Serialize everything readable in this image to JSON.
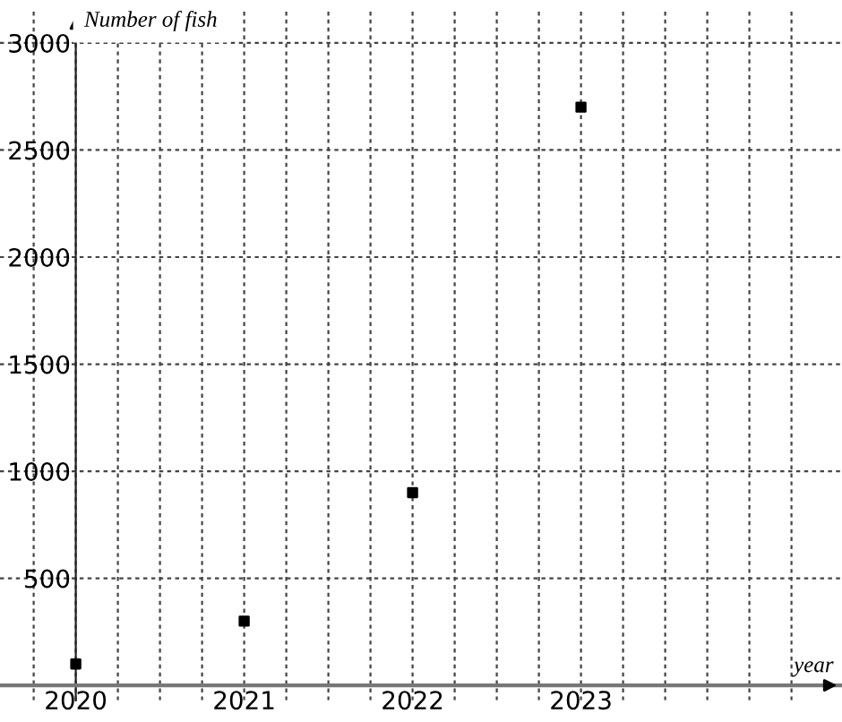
{
  "chart_data": {
    "type": "scatter",
    "xlabel": "year",
    "ylabel": "Number of fish",
    "x": [
      2020,
      2021,
      2022,
      2023
    ],
    "series": [
      {
        "color": "#000000",
        "values": [
          100,
          300,
          900,
          2700
        ]
      }
    ],
    "xlim": [
      2019.55,
      2024.55
    ],
    "ylim": [
      -70,
      3150
    ],
    "xticks": [
      {
        "value": 2019.75,
        "label": null
      },
      2020,
      {
        "value": 2020.25,
        "label": null
      },
      {
        "value": 2020.5,
        "label": null
      },
      {
        "value": 2020.75,
        "label": null
      },
      2021,
      {
        "value": 2021.25,
        "label": null
      },
      {
        "value": 2021.5,
        "label": null
      },
      {
        "value": 2021.75,
        "label": null
      },
      2022,
      {
        "value": 2022.25,
        "label": null
      },
      {
        "value": 2022.5,
        "label": null
      },
      {
        "value": 2022.75,
        "label": null
      },
      2023,
      {
        "value": 2023.25,
        "label": null
      },
      {
        "value": 2023.5,
        "label": null
      },
      {
        "value": 2023.75,
        "label": null
      },
      {
        "value": 2024,
        "label": null
      },
      {
        "value": 2024.25,
        "label": null
      }
    ],
    "yticks": [
      500,
      1000,
      1500,
      2000,
      2500,
      3000
    ],
    "grid": true,
    "marker": "square"
  }
}
